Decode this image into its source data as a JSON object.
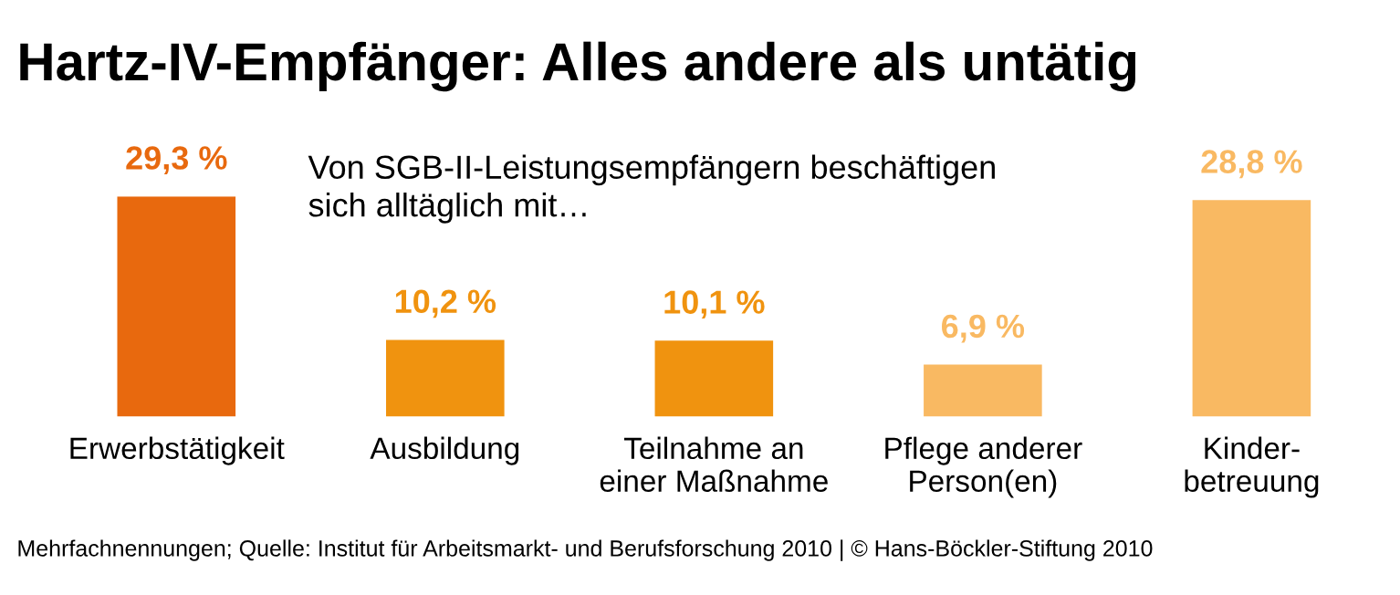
{
  "chart_data": {
    "type": "bar",
    "title": "Hartz-IV-Empfänger: Alles andere als untätig",
    "subtitle": "Von SGB-II-Leistungsempfängern beschäftigen\nsich alltäglich mit…",
    "categories": [
      "Erwerbstätigkeit",
      "Ausbildung",
      "Teilnahme an\neiner Maßnahme",
      "Pflege anderer\nPerson(en)",
      "Kinder-\nbetreuung"
    ],
    "values": [
      29.3,
      10.2,
      10.1,
      6.9,
      28.8
    ],
    "value_labels": [
      "29,3 %",
      "10,2 %",
      "10,1 %",
      "6,9 %",
      "28,8 %"
    ],
    "colors": [
      "#e8690e",
      "#f0930f",
      "#f0930f",
      "#f9b962",
      "#f9b962"
    ],
    "annotations": [
      "Mehrfachnennungen; Quelle: Institut für Arbeitsmarkt- und Berufsforschung 2010 | © Hans-Böckler-Stiftung 2010"
    ]
  }
}
